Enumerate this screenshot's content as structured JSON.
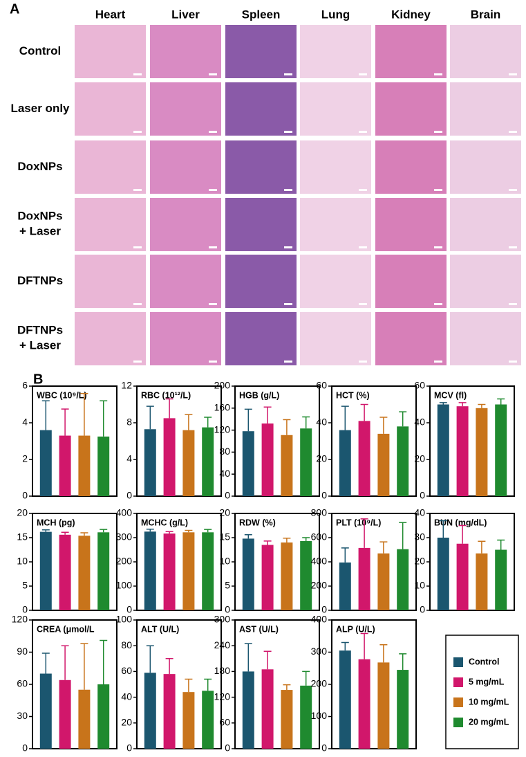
{
  "panel_a": {
    "label": "A",
    "columns": [
      "Heart",
      "Liver",
      "Spleen",
      "Lung",
      "Kidney",
      "Brain"
    ],
    "rows": [
      "Control",
      "Laser only",
      "DoxNPs",
      "DoxNPs\n+ Laser",
      "DFTNPs",
      "DFTNPs\n+ Laser"
    ]
  },
  "panel_b": {
    "label": "B"
  },
  "legend": [
    {
      "name": "Control",
      "color": "#1b566f"
    },
    {
      "name": "5 mg/mL",
      "color": "#d1176b"
    },
    {
      "name": "10 mg/mL",
      "color": "#c8741b"
    },
    {
      "name": "20 mg/mL",
      "color": "#1f8a2f"
    }
  ],
  "chart_data": [
    {
      "type": "bar",
      "title": "WBC (10⁹/L)",
      "ylim": [
        0,
        6
      ],
      "yticks": [
        0,
        2,
        4,
        6
      ],
      "values": [
        3.6,
        3.3,
        3.3,
        3.25
      ],
      "errors": [
        1.6,
        1.45,
        2.3,
        1.95
      ]
    },
    {
      "type": "bar",
      "title": "RBC (10¹²/L)",
      "ylim": [
        0,
        12
      ],
      "yticks": [
        0,
        4,
        8,
        12
      ],
      "values": [
        7.3,
        8.5,
        7.2,
        7.5
      ],
      "errors": [
        2.5,
        2.1,
        1.7,
        1.1
      ]
    },
    {
      "type": "bar",
      "title": "HGB (g/L)",
      "ylim": [
        0,
        200
      ],
      "yticks": [
        0,
        40,
        80,
        120,
        160,
        200
      ],
      "values": [
        118,
        132,
        111,
        123
      ],
      "errors": [
        40,
        30,
        28,
        21
      ]
    },
    {
      "type": "bar",
      "title": "HCT (%)",
      "ylim": [
        0,
        60
      ],
      "yticks": [
        0,
        20,
        40,
        60
      ],
      "values": [
        36,
        41,
        34,
        38
      ],
      "errors": [
        13,
        9,
        9,
        8
      ]
    },
    {
      "type": "bar",
      "title": "MCV (fl)",
      "ylim": [
        0,
        60
      ],
      "yticks": [
        0,
        20,
        40,
        60
      ],
      "values": [
        50,
        49,
        48,
        50
      ],
      "errors": [
        1,
        2,
        2,
        3
      ]
    },
    {
      "type": "bar",
      "title": "MCH (pg)",
      "ylim": [
        0,
        20
      ],
      "yticks": [
        0,
        5,
        10,
        15,
        20
      ],
      "values": [
        16.2,
        15.6,
        15.4,
        16.1
      ],
      "errors": [
        0.4,
        0.5,
        0.6,
        0.6
      ]
    },
    {
      "type": "bar",
      "title": "MCHC (g/L)",
      "ylim": [
        0,
        400
      ],
      "yticks": [
        0,
        100,
        200,
        300,
        400
      ],
      "values": [
        325,
        317,
        322,
        322
      ],
      "errors": [
        10,
        8,
        8,
        12
      ]
    },
    {
      "type": "bar",
      "title": "RDW (%)",
      "ylim": [
        0,
        20
      ],
      "yticks": [
        0,
        5,
        10,
        15,
        20
      ],
      "values": [
        14.8,
        13.5,
        14,
        14.3
      ],
      "errors": [
        0.8,
        0.8,
        0.9,
        0.7
      ]
    },
    {
      "type": "bar",
      "title": "PLT (10⁹/L)",
      "ylim": [
        0,
        800
      ],
      "yticks": [
        0,
        200,
        400,
        600,
        800
      ],
      "values": [
        395,
        515,
        470,
        505
      ],
      "errors": [
        120,
        240,
        95,
        220
      ]
    },
    {
      "type": "bar",
      "title": "BUN (mg/dL)",
      "ylim": [
        0,
        40
      ],
      "yticks": [
        0,
        10,
        20,
        30,
        40
      ],
      "values": [
        30,
        27.5,
        23.5,
        25
      ],
      "errors": [
        7,
        7.5,
        5,
        4
      ]
    },
    {
      "type": "bar",
      "title": "CREA (μmol/L",
      "ylim": [
        0,
        120
      ],
      "yticks": [
        0,
        30,
        60,
        90,
        120
      ],
      "values": [
        70,
        64,
        55,
        60
      ],
      "errors": [
        19,
        32,
        43,
        41
      ]
    },
    {
      "type": "bar",
      "title": "ALT (U/L)",
      "ylim": [
        0,
        100
      ],
      "yticks": [
        0,
        20,
        40,
        60,
        80,
        100
      ],
      "values": [
        59,
        58,
        44,
        45
      ],
      "errors": [
        21,
        12,
        10,
        9
      ]
    },
    {
      "type": "bar",
      "title": "AST (U/L)",
      "ylim": [
        0,
        300
      ],
      "yticks": [
        0,
        60,
        120,
        180,
        240,
        300
      ],
      "values": [
        180,
        185,
        137,
        147
      ],
      "errors": [
        65,
        42,
        12,
        33
      ]
    },
    {
      "type": "bar",
      "title": "ALP (U/L)",
      "ylim": [
        0,
        400
      ],
      "yticks": [
        0,
        100,
        200,
        300,
        400
      ],
      "values": [
        305,
        278,
        268,
        245
      ],
      "errors": [
        25,
        80,
        55,
        50
      ]
    }
  ]
}
